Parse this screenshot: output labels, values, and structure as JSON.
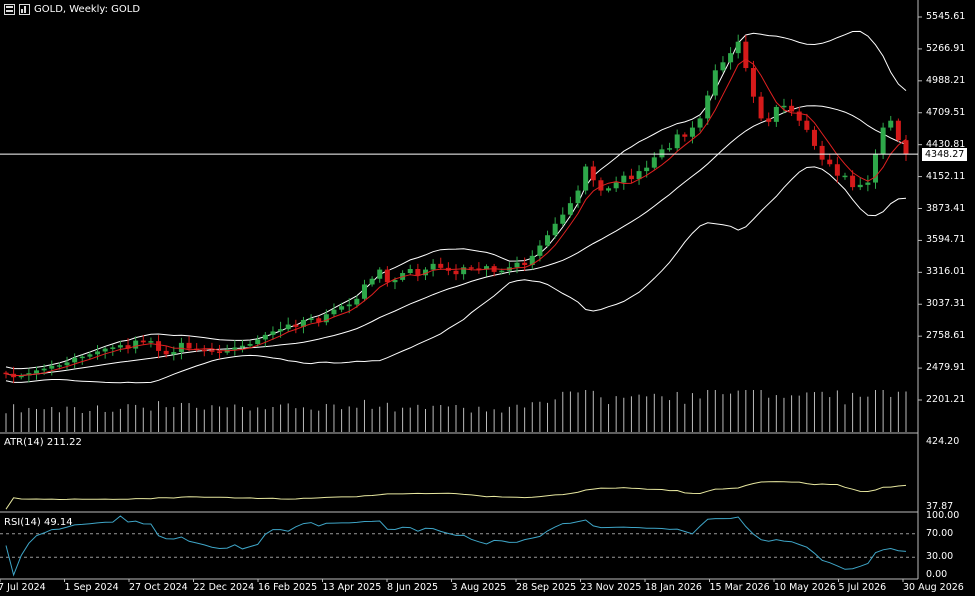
{
  "window": {
    "symbol_title": "GOLD, Weekly: GOLD",
    "icons": [
      "chart-window-icon",
      "bar-chart-icon"
    ]
  },
  "price_axis": {
    "labels": [
      "5545.61",
      "5266.91",
      "4988.21",
      "4709.51",
      "4430.81",
      "4152.11",
      "3873.41",
      "3594.71",
      "3316.01",
      "3037.31",
      "2758.61",
      "2479.91",
      "2201.21"
    ],
    "current_price": "4348.27"
  },
  "atr_panel": {
    "label": "ATR(14) 211.22",
    "axis": [
      "424.20",
      "37.87"
    ]
  },
  "rsi_panel": {
    "label": "RSI(14) 49.14",
    "axis": [
      "100.00",
      "70.00",
      "30.00",
      "0.00"
    ],
    "levels": [
      70,
      30
    ]
  },
  "date_axis": [
    "7 Jul 2024",
    "1 Sep 2024",
    "27 Oct 2024",
    "22 Dec 2024",
    "16 Feb 2025",
    "13 Apr 2025",
    "8 Jun 2025",
    "3 Aug 2025",
    "28 Sep 2025",
    "23 Nov 2025",
    "18 Jan 2026",
    "15 Mar 2026",
    "10 May 2026",
    "5 Jul 2026",
    "30 Aug 2026"
  ],
  "colors": {
    "background": "#000000",
    "bull": "#2ea84a",
    "bear": "#d51a1a",
    "ma": "#e02020",
    "bands": "#ffffff",
    "atr": "#e8e8a0",
    "rsi": "#3fa6c8"
  },
  "chart_data": {
    "type": "candlestick",
    "timeframe": "Weekly",
    "ylim": [
      2201.21,
      5545.61
    ],
    "closes": [
      2430,
      2400,
      2415,
      2435,
      2460,
      2475,
      2500,
      2505,
      2530,
      2570,
      2580,
      2600,
      2625,
      2650,
      2660,
      2680,
      2650,
      2720,
      2705,
      2715,
      2630,
      2600,
      2620,
      2700,
      2650,
      2640,
      2635,
      2625,
      2615,
      2640,
      2660,
      2675,
      2690,
      2730,
      2770,
      2800,
      2820,
      2860,
      2840,
      2900,
      2915,
      2880,
      2950,
      2990,
      3020,
      3035,
      3085,
      3210,
      3260,
      3340,
      3230,
      3250,
      3310,
      3345,
      3290,
      3340,
      3390,
      3355,
      3330,
      3300,
      3360,
      3350,
      3340,
      3370,
      3320,
      3330,
      3360,
      3400,
      3380,
      3460,
      3550,
      3640,
      3740,
      3820,
      3920,
      4030,
      4240,
      4120,
      4030,
      4050,
      4100,
      4160,
      4130,
      4200,
      4230,
      4320,
      4390,
      4400,
      4520,
      4500,
      4580,
      4660,
      4860,
      5080,
      5150,
      5230,
      5330,
      5100,
      4850,
      4660,
      4630,
      4760,
      4770,
      4720,
      4640,
      4560,
      4420,
      4300,
      4260,
      4160,
      4160,
      4060,
      4080,
      4100,
      4350,
      4580,
      4640,
      4470,
      4348
    ]
  }
}
